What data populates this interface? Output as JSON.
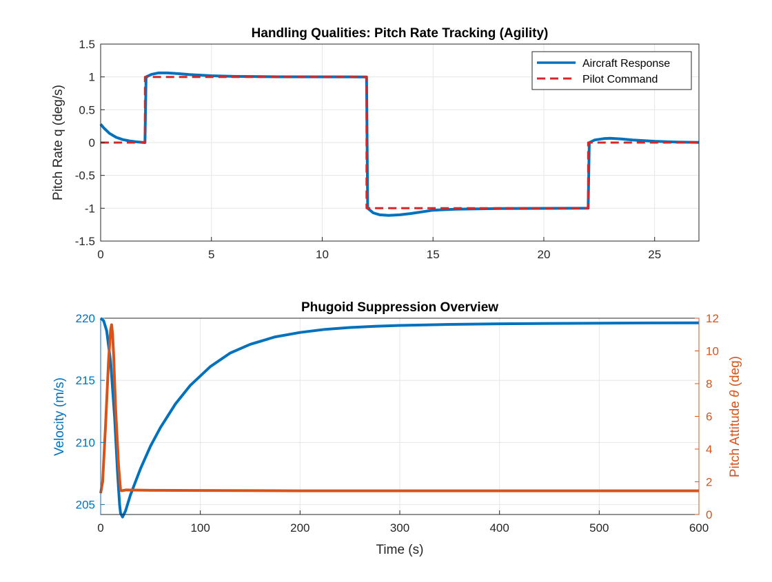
{
  "chart_data": [
    {
      "type": "line",
      "title": "Handling Qualities: Pitch Rate Tracking (Agility)",
      "xlabel": "",
      "ylabel": "Pitch Rate q (deg/s)",
      "xlim": [
        0,
        27
      ],
      "ylim": [
        -1.5,
        1.5
      ],
      "xticks": [
        "0",
        "5",
        "10",
        "15",
        "20",
        "25"
      ],
      "yticks": [
        "-1.5",
        "-1",
        "-0.5",
        "0",
        "0.5",
        "1",
        "1.5"
      ],
      "grid": true,
      "legend_position": "top-right",
      "series": [
        {
          "name": "Aircraft Response",
          "color": "#0072BD",
          "style": "solid",
          "x": [
            0,
            0.15,
            0.4,
            0.7,
            1.0,
            1.3,
            1.6,
            1.9,
            2.0,
            2.05,
            2.3,
            2.6,
            3.0,
            3.5,
            4.0,
            5.0,
            6.0,
            8.0,
            12.0,
            12.05,
            12.3,
            12.6,
            13.0,
            13.5,
            14.0,
            15.0,
            16.0,
            18.0,
            22.0,
            22.05,
            22.3,
            22.7,
            23.0,
            23.5,
            24.0,
            25.0,
            26.0,
            27.0
          ],
          "y": [
            0.28,
            0.22,
            0.14,
            0.08,
            0.045,
            0.025,
            0.012,
            0.003,
            0,
            1.0,
            1.04,
            1.06,
            1.06,
            1.05,
            1.035,
            1.018,
            1.008,
            1.002,
            1.0,
            -1.0,
            -1.07,
            -1.1,
            -1.11,
            -1.1,
            -1.08,
            -1.03,
            -1.015,
            -1.004,
            -1.0,
            0.0,
            0.04,
            0.06,
            0.065,
            0.055,
            0.04,
            0.02,
            0.008,
            0.002
          ]
        },
        {
          "name": "Pilot Command",
          "color": "#D62728",
          "style": "dashed",
          "x": [
            0,
            2,
            2,
            12,
            12,
            22,
            22,
            27
          ],
          "y": [
            0,
            0,
            1,
            1,
            -1,
            -1,
            0,
            0
          ]
        }
      ]
    },
    {
      "type": "line",
      "title": "Phugoid Suppression Overview",
      "xlabel": "Time (s)",
      "xlim": [
        0,
        600
      ],
      "xticks": [
        "0",
        "100",
        "200",
        "300",
        "400",
        "500",
        "600"
      ],
      "grid": true,
      "left_axis": {
        "label": "Velocity (m/s)",
        "color": "#0072BD",
        "ylim": [
          204.2,
          220
        ],
        "yticks": [
          "205",
          "210",
          "215",
          "220"
        ]
      },
      "right_axis": {
        "label_prefix": "Pitch Attitude ",
        "label_symbol": "θ",
        "label_suffix": " (deg)",
        "color": "#D95319",
        "ylim": [
          0,
          12
        ],
        "yticks": [
          "0",
          "2",
          "4",
          "6",
          "8",
          "10",
          "12"
        ]
      },
      "series": [
        {
          "name": "",
          "axis": "left",
          "color": "#0072BD",
          "x": [
            0,
            3,
            6,
            10,
            14,
            17,
            19,
            20,
            22,
            25,
            30,
            40,
            50,
            60,
            75,
            90,
            110,
            130,
            150,
            175,
            200,
            225,
            250,
            275,
            300,
            350,
            400,
            450,
            500,
            550,
            600
          ],
          "y": [
            220,
            219.8,
            219.0,
            216.5,
            212.0,
            207.5,
            205.0,
            204.3,
            204.0,
            204.5,
            205.8,
            207.9,
            209.7,
            211.2,
            213.1,
            214.6,
            216.1,
            217.2,
            217.9,
            218.5,
            218.85,
            219.1,
            219.25,
            219.35,
            219.42,
            219.5,
            219.55,
            219.58,
            219.6,
            219.62,
            219.63
          ]
        },
        {
          "name": "",
          "axis": "right",
          "color": "#D95319",
          "x": [
            0,
            2,
            5,
            8,
            10,
            11,
            12,
            13,
            15,
            18,
            20,
            21,
            25,
            50,
            100,
            200,
            300,
            400,
            500,
            600
          ],
          "y": [
            1.3,
            2.0,
            5.5,
            9.5,
            11.3,
            11.6,
            11.0,
            9.8,
            6.5,
            3.0,
            1.5,
            1.45,
            1.5,
            1.48,
            1.47,
            1.45,
            1.45,
            1.45,
            1.45,
            1.45
          ]
        }
      ]
    }
  ]
}
